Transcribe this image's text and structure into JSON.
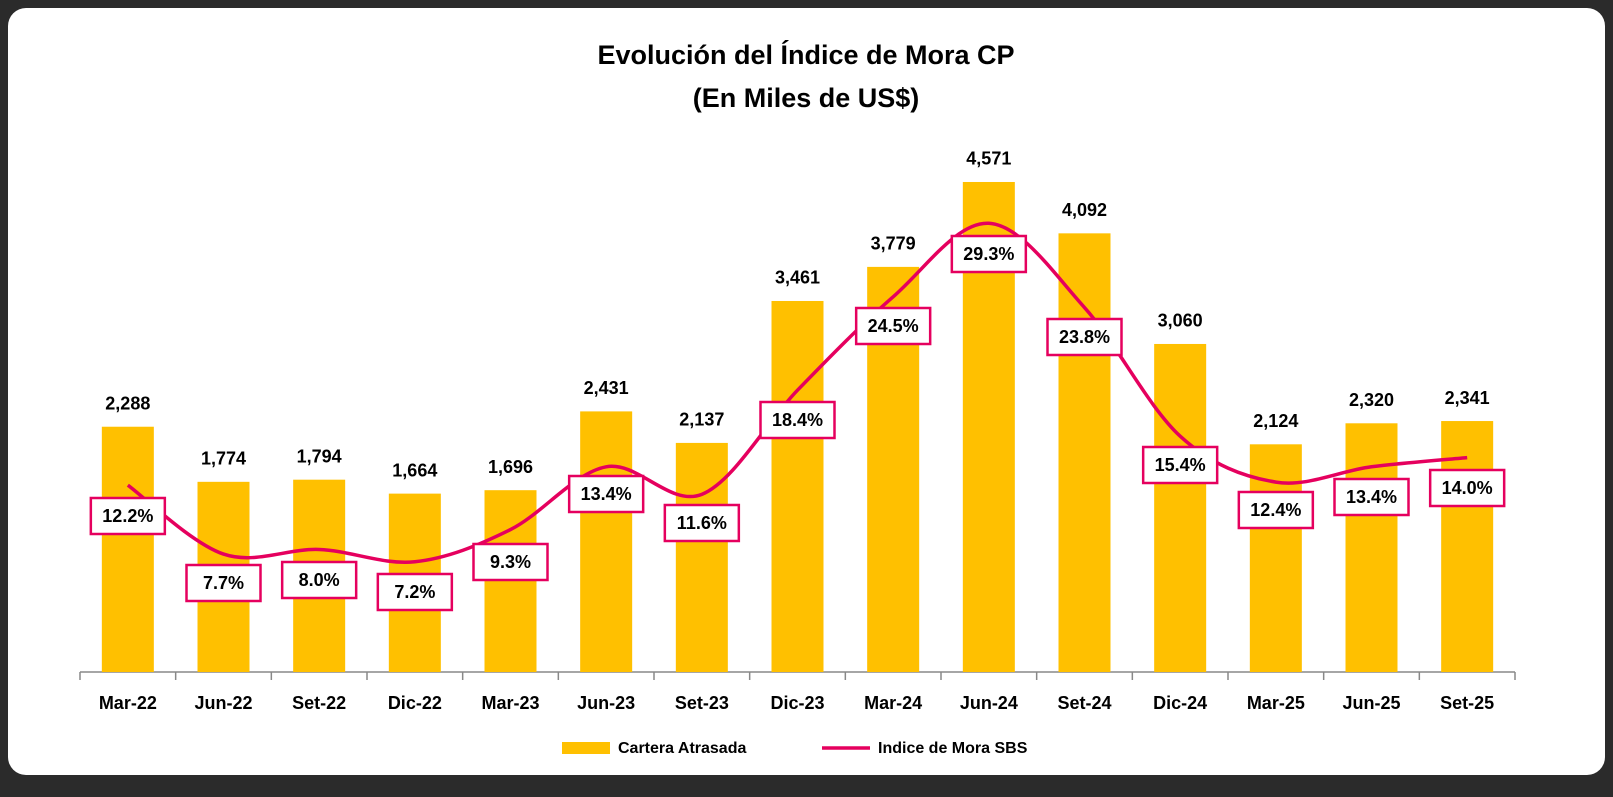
{
  "chart_data": {
    "type": "bar-line",
    "title": "Evolución del Índice de Mora CP",
    "subtitle": "(En Miles de US$)",
    "categories": [
      "Mar-22",
      "Jun-22",
      "Set-22",
      "Dic-22",
      "Mar-23",
      "Jun-23",
      "Set-23",
      "Dic-23",
      "Mar-24",
      "Jun-24",
      "Set-24",
      "Dic-24",
      "Mar-25",
      "Jun-25",
      "Set-25"
    ],
    "series": [
      {
        "name": "Cartera Atrasada",
        "type": "bar",
        "color": "#ffc000",
        "values": [
          2288,
          1774,
          1794,
          1664,
          1696,
          2431,
          2137,
          3461,
          3779,
          4571,
          4092,
          3060,
          2124,
          2320,
          2341
        ],
        "value_labels": [
          "2,288",
          "1,774",
          "1,794",
          "1,664",
          "1,696",
          "2,431",
          "2,137",
          "3,461",
          "3,779",
          "4,571",
          "4,092",
          "3,060",
          "2,124",
          "2,320",
          "2,341"
        ]
      },
      {
        "name": "Indice de Mora  SBS",
        "type": "line",
        "axis": "y2",
        "color": "#e5005e",
        "values": [
          12.2,
          7.7,
          8.0,
          7.2,
          9.3,
          13.4,
          11.6,
          18.4,
          24.5,
          29.3,
          23.8,
          15.4,
          12.4,
          13.4,
          14.0
        ],
        "value_labels": [
          "12.2%",
          "7.7%",
          "8.0%",
          "7.2%",
          "9.3%",
          "13.4%",
          "11.6%",
          "18.4%",
          "24.5%",
          "29.3%",
          "23.8%",
          "15.4%",
          "12.4%",
          "13.4%",
          "14.0%"
        ]
      }
    ],
    "ylim": [
      0,
      5000
    ],
    "y2lim": [
      0,
      35
    ]
  }
}
